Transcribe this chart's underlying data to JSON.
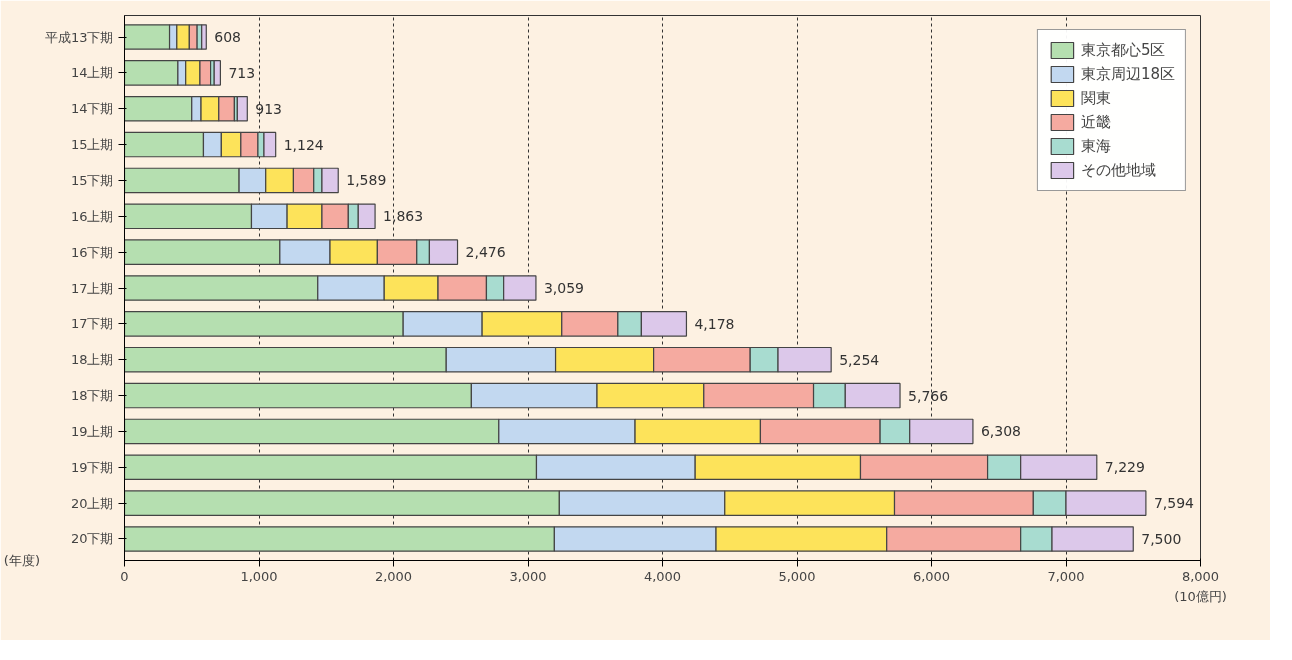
{
  "chart_data": {
    "type": "bar",
    "orientation": "horizontal",
    "stacked": true,
    "categories": [
      "平成13下期",
      "14上期",
      "14下期",
      "15上期",
      "15下期",
      "16上期",
      "16下期",
      "17上期",
      "17下期",
      "18上期",
      "18下期",
      "19上期",
      "19下期",
      "20上期",
      "20下期"
    ],
    "series": [
      {
        "name": "東京都心5区",
        "color": "#b5dfb0",
        "values": [
          335,
          397,
          500,
          587,
          852,
          944,
          1155,
          1437,
          2072,
          2392,
          2579,
          2783,
          3063,
          3233,
          3196
        ]
      },
      {
        "name": "東京周辺18区",
        "color": "#c2d8f0",
        "values": [
          54,
          58,
          69,
          133,
          198,
          265,
          373,
          494,
          587,
          813,
          934,
          1013,
          1180,
          1230,
          1202
        ]
      },
      {
        "name": "関東",
        "color": "#fde35a",
        "values": [
          93,
          106,
          132,
          145,
          206,
          259,
          352,
          400,
          592,
          729,
          794,
          932,
          1229,
          1262,
          1269
        ]
      },
      {
        "name": "近畿",
        "color": "#f5aaa0",
        "values": [
          58,
          79,
          116,
          127,
          151,
          196,
          293,
          360,
          417,
          718,
          816,
          890,
          945,
          1032,
          996
        ]
      },
      {
        "name": "東海",
        "color": "#a8dcd0",
        "values": [
          34,
          27,
          22,
          45,
          61,
          74,
          94,
          128,
          175,
          207,
          236,
          220,
          246,
          243,
          233
        ]
      },
      {
        "name": "その他地域",
        "color": "#dcc8ea",
        "values": [
          34,
          46,
          74,
          87,
          121,
          125,
          209,
          240,
          335,
          395,
          407,
          470,
          566,
          594,
          604
        ]
      }
    ],
    "totals": [
      "608",
      "713",
      "913",
      "1,124",
      "1,589",
      "1,863",
      "2,476",
      "3,059",
      "4,178",
      "5,254",
      "5,766",
      "6,308",
      "7,229",
      "7,594",
      "7,500"
    ],
    "xlim": [
      0,
      8000
    ],
    "xticks": [
      {
        "value": 0,
        "label": "0"
      },
      {
        "value": 1000,
        "label": "1,000"
      },
      {
        "value": 2000,
        "label": "2,000"
      },
      {
        "value": 3000,
        "label": "3,000"
      },
      {
        "value": 4000,
        "label": "4,000"
      },
      {
        "value": 5000,
        "label": "5,000"
      },
      {
        "value": 6000,
        "label": "6,000"
      },
      {
        "value": 7000,
        "label": "7,000"
      },
      {
        "value": 8000,
        "label": "8,000"
      }
    ],
    "xlabel": "(10億円)",
    "ylabel": "(年度)",
    "grid": "x",
    "legend": "top right"
  }
}
